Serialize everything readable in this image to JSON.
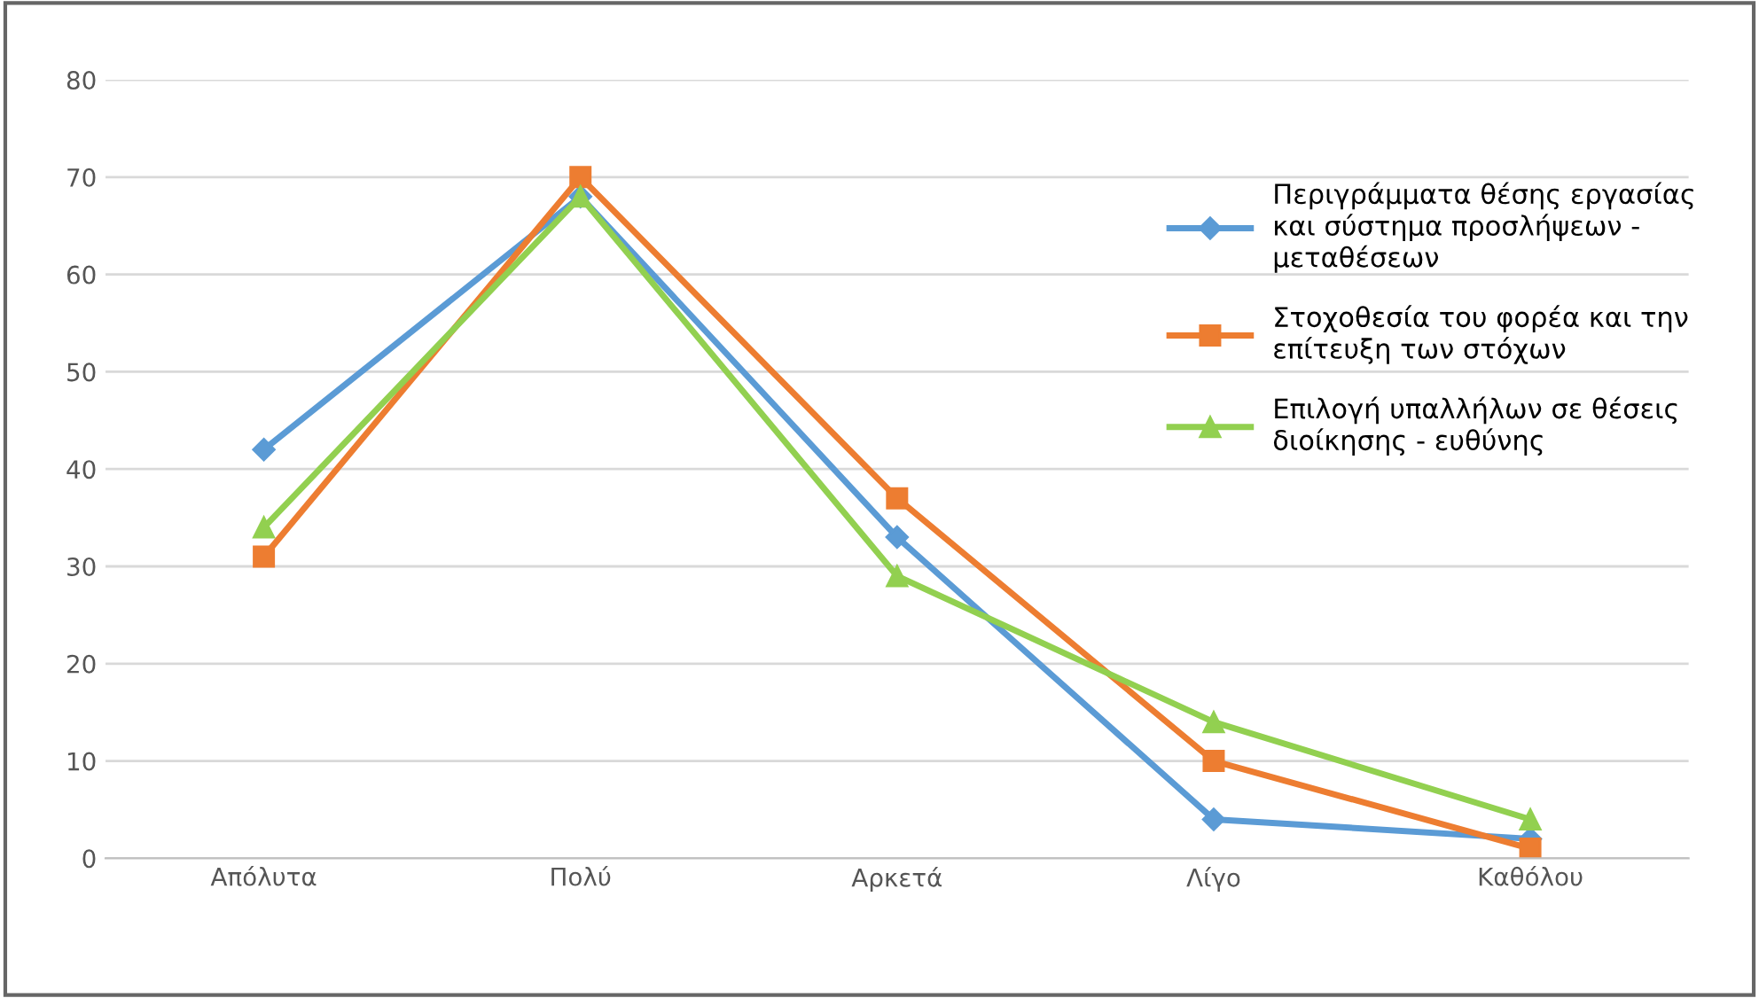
{
  "chart_data": {
    "type": "line",
    "categories": [
      "Απόλυτα",
      "Πολύ",
      "Αρκετά",
      "Λίγο",
      "Καθόλου"
    ],
    "series": [
      {
        "name": "Περιγράμματα θέσης εργασίας\nκαι σύστημα προσλήψεων -\nμεταθέσεων",
        "color": "#5b9bd5",
        "marker": "diamond",
        "values": [
          42,
          68,
          33,
          4,
          2
        ]
      },
      {
        "name": "Στοχοθεσία του φορέα και την\nεπίτευξη των στόχων",
        "color": "#ed7d31",
        "marker": "square",
        "values": [
          31,
          70,
          37,
          10,
          1
        ]
      },
      {
        "name": "Επιλογή υπαλλήλων σε θέσεις\nδιοίκησης - ευθύνης",
        "color": "#92d050",
        "marker": "triangle",
        "values": [
          34,
          68,
          29,
          14,
          4
        ]
      }
    ],
    "ylim": [
      0,
      80
    ],
    "yticks": [
      0,
      10,
      20,
      30,
      40,
      50,
      60,
      70,
      80
    ],
    "grid": "y",
    "legend": "top right",
    "line_style": "solid"
  }
}
